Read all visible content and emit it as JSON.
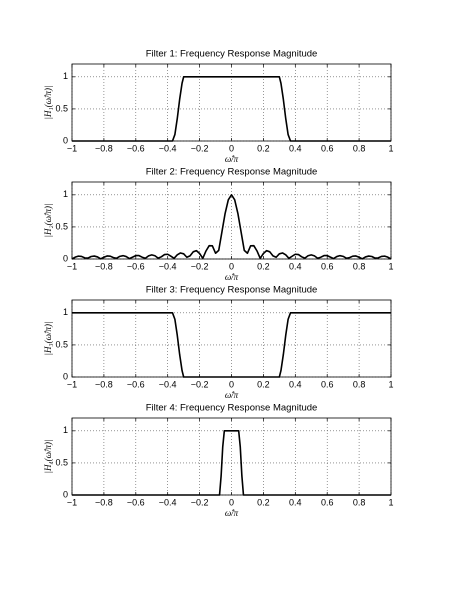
{
  "chart_data": [
    {
      "type": "line",
      "title": "Filter 1: Frequency Response Magnitude",
      "xlabel": "ω̂/π",
      "ylabel": "|H₁(ω̂/π)|",
      "color": "#000000",
      "grid": true,
      "x": [
        -1,
        -0.37,
        -0.355,
        -0.34,
        -0.325,
        -0.31,
        -0.3,
        0.3,
        0.31,
        0.325,
        0.34,
        0.355,
        0.37,
        1
      ],
      "values": [
        0,
        0,
        0.1,
        0.35,
        0.65,
        0.9,
        1,
        1,
        0.9,
        0.65,
        0.35,
        0.1,
        0,
        0
      ],
      "xlim": [
        -1,
        1
      ],
      "ylim": [
        0,
        1.2
      ],
      "xticks": [
        {
          "value": -1,
          "label": "−1"
        },
        {
          "value": -0.8,
          "label": "−0.8"
        },
        {
          "value": -0.6,
          "label": "−0.6"
        },
        {
          "value": -0.4,
          "label": "−0.4"
        },
        {
          "value": -0.2,
          "label": "−0.2"
        },
        0,
        0.2,
        0.4,
        0.6,
        0.8,
        1
      ],
      "yticks": [
        0,
        0.5,
        1
      ]
    },
    {
      "type": "line",
      "title": "Filter 2: Frequency Response Magnitude",
      "xlabel": "ω̂/π",
      "ylabel": "|H₂(ω̂/π)|",
      "color": "#000000",
      "grid": true,
      "x": [
        -1,
        -0.98,
        -0.96,
        -0.94,
        -0.92,
        -0.9,
        -0.88,
        -0.86,
        -0.84,
        -0.82,
        -0.8,
        -0.78,
        -0.76,
        -0.74,
        -0.72,
        -0.7,
        -0.68,
        -0.66,
        -0.64,
        -0.62,
        -0.6,
        -0.58,
        -0.56,
        -0.54,
        -0.52,
        -0.5,
        -0.48,
        -0.46,
        -0.44,
        -0.42,
        -0.4,
        -0.38,
        -0.36,
        -0.34,
        -0.32,
        -0.3,
        -0.28,
        -0.26,
        -0.24,
        -0.22,
        -0.2,
        -0.18,
        -0.16,
        -0.14,
        -0.12,
        -0.1,
        -0.08,
        -0.06,
        -0.04,
        -0.02,
        0,
        0.02,
        0.04,
        0.06,
        0.08,
        0.1,
        0.12,
        0.14,
        0.16,
        0.18,
        0.2,
        0.22,
        0.24,
        0.26,
        0.28,
        0.3,
        0.32,
        0.34,
        0.36,
        0.38,
        0.4,
        0.42,
        0.44,
        0.46,
        0.48,
        0.5,
        0.52,
        0.54,
        0.56,
        0.58,
        0.6,
        0.62,
        0.64,
        0.66,
        0.68,
        0.7,
        0.72,
        0.74,
        0.76,
        0.78,
        0.8,
        0.82,
        0.84,
        0.86,
        0.88,
        0.9,
        0.92,
        0.94,
        0.96,
        0.98,
        1
      ],
      "values": [
        0,
        0.029,
        0.045,
        0.04,
        0.017,
        0.014,
        0.039,
        0.046,
        0.032,
        0.003,
        0.028,
        0.047,
        0.044,
        0.021,
        0.012,
        0.041,
        0.052,
        0.038,
        0.007,
        0.029,
        0.053,
        0.053,
        0.028,
        0.011,
        0.048,
        0.064,
        0.051,
        0.013,
        0.034,
        0.069,
        0.074,
        0.043,
        0.011,
        0.065,
        0.094,
        0.081,
        0.027,
        0.049,
        0.112,
        0.13,
        0.086,
        0.01,
        0.125,
        0.207,
        0.205,
        0.09,
        0.134,
        0.423,
        0.711,
        0.922,
        1,
        0.922,
        0.711,
        0.423,
        0.134,
        0.09,
        0.205,
        0.207,
        0.125,
        0.01,
        0.086,
        0.13,
        0.112,
        0.049,
        0.027,
        0.081,
        0.094,
        0.065,
        0.011,
        0.043,
        0.074,
        0.069,
        0.034,
        0.013,
        0.051,
        0.064,
        0.048,
        0.011,
        0.028,
        0.053,
        0.053,
        0.029,
        0.007,
        0.038,
        0.052,
        0.041,
        0.012,
        0.021,
        0.044,
        0.047,
        0.028,
        0.003,
        0.032,
        0.046,
        0.039,
        0.014,
        0.017,
        0.04,
        0.045,
        0.029,
        0
      ],
      "xlim": [
        -1,
        1
      ],
      "ylim": [
        0,
        1.2
      ],
      "xticks": [
        {
          "value": -1,
          "label": "−1"
        },
        {
          "value": -0.8,
          "label": "−0.8"
        },
        {
          "value": -0.6,
          "label": "−0.6"
        },
        {
          "value": -0.4,
          "label": "−0.4"
        },
        {
          "value": -0.2,
          "label": "−0.2"
        },
        0,
        0.2,
        0.4,
        0.6,
        0.8,
        1
      ],
      "yticks": [
        0,
        0.5,
        1
      ]
    },
    {
      "type": "line",
      "title": "Filter 3: Frequency Response Magnitude",
      "xlabel": "ω̂/π",
      "ylabel": "|H₃(ω̂/π)|",
      "color": "#000000",
      "grid": true,
      "x": [
        -1,
        -0.37,
        -0.355,
        -0.34,
        -0.325,
        -0.31,
        -0.3,
        0.3,
        0.31,
        0.325,
        0.34,
        0.355,
        0.37,
        1
      ],
      "values": [
        1,
        1,
        0.9,
        0.65,
        0.35,
        0.1,
        0,
        0,
        0.1,
        0.35,
        0.65,
        0.9,
        1,
        1
      ],
      "xlim": [
        -1,
        1
      ],
      "ylim": [
        0,
        1.2
      ],
      "xticks": [
        {
          "value": -1,
          "label": "−1"
        },
        {
          "value": -0.8,
          "label": "−0.8"
        },
        {
          "value": -0.6,
          "label": "−0.6"
        },
        {
          "value": -0.4,
          "label": "−0.4"
        },
        {
          "value": -0.2,
          "label": "−0.2"
        },
        0,
        0.2,
        0.4,
        0.6,
        0.8,
        1
      ],
      "yticks": [
        0,
        0.5,
        1
      ]
    },
    {
      "type": "line",
      "title": "Filter 4: Frequency Response Magnitude",
      "xlabel": "ω̂/π",
      "ylabel": "|H₄(ω̂/π)|",
      "color": "#000000",
      "grid": true,
      "x": [
        -1,
        -0.075,
        -0.065,
        -0.055,
        -0.045,
        0.045,
        0.055,
        0.065,
        0.075,
        1
      ],
      "values": [
        0,
        0,
        0.3,
        0.75,
        1,
        1,
        0.75,
        0.3,
        0,
        0
      ],
      "xlim": [
        -1,
        1
      ],
      "ylim": [
        0,
        1.2
      ],
      "xticks": [
        {
          "value": -1,
          "label": "−1"
        },
        {
          "value": -0.8,
          "label": "−0.8"
        },
        {
          "value": -0.6,
          "label": "−0.6"
        },
        {
          "value": -0.4,
          "label": "−0.4"
        },
        {
          "value": -0.2,
          "label": "−0.2"
        },
        0,
        0.2,
        0.4,
        0.6,
        0.8,
        1
      ],
      "yticks": [
        0,
        0.5,
        1
      ]
    }
  ]
}
